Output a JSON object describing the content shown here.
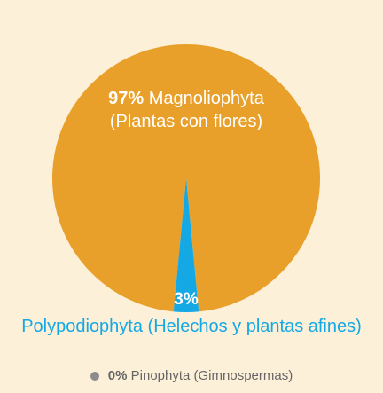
{
  "chart_data": {
    "type": "pie",
    "categories": [
      "Magnoliophyta (Plantas con flores)",
      "Polypodiophyta (Helechos y plantas afines)",
      "Pinophyta (Gimnospermas)"
    ],
    "values": [
      97,
      3,
      0
    ],
    "value_labels": [
      "97%",
      "3%",
      "0%"
    ],
    "colors": [
      "#e9a02b",
      "#14a8e4",
      "#8c8c8c"
    ]
  }
}
